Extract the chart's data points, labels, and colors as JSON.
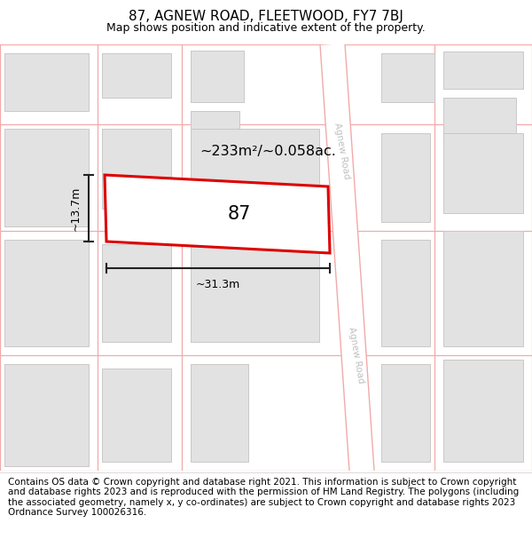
{
  "title": "87, AGNEW ROAD, FLEETWOOD, FY7 7BJ",
  "subtitle": "Map shows position and indicative extent of the property.",
  "footer": "Contains OS data © Crown copyright and database right 2021. This information is subject to Crown copyright and database rights 2023 and is reproduced with the permission of HM Land Registry. The polygons (including the associated geometry, namely x, y co-ordinates) are subject to Crown copyright and database rights 2023 Ordnance Survey 100026316.",
  "area_label": "~233m²/~0.058ac.",
  "width_label": "~31.3m",
  "height_label": "~13.7m",
  "plot_number": "87",
  "map_bg": "#ffffff",
  "building_fill": "#e2e2e2",
  "building_edge": "#c8c8c8",
  "road_line_color": "#f2aaaa",
  "plot_edge_color": "#dd0000",
  "plot_fill": "#ffffff",
  "dim_line_color": "#222222",
  "title_fontsize": 11,
  "subtitle_fontsize": 9,
  "footer_fontsize": 7.5,
  "road_label_color": "#c0c0c0",
  "road_text_rotation": -80
}
